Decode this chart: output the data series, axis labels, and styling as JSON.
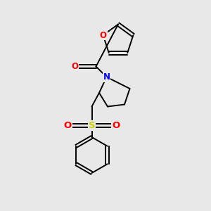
{
  "background_color": "#e8e8e8",
  "bond_color": "#000000",
  "atom_colors": {
    "O": "#ff0000",
    "N": "#0000ff",
    "S": "#cccc00",
    "C": "#000000"
  },
  "figsize": [
    3.0,
    3.0
  ],
  "dpi": 100,
  "lw": 1.4,
  "fs": 8.5
}
